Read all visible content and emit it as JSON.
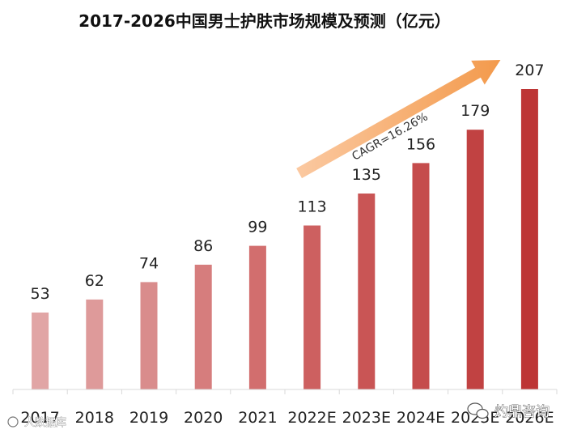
{
  "chart_data": {
    "type": "bar",
    "title": "2017-2026中国男士护肤市场规模及预测（亿元）",
    "categories": [
      "2017",
      "2018",
      "2019",
      "2020",
      "2021",
      "2022E",
      "2023E",
      "2024E",
      "2025E",
      "2026E"
    ],
    "values": [
      53,
      62,
      74,
      86,
      99,
      113,
      135,
      156,
      179,
      207
    ],
    "data_labels": [
      "53",
      "62",
      "74",
      "86",
      "99",
      "113",
      "135",
      "156",
      "179",
      "207"
    ],
    "xlabel": "",
    "ylabel": "",
    "ylim": [
      0,
      207
    ],
    "grid": false,
    "legend": "none",
    "annotation": {
      "text": "CAGR=16.26%",
      "arrow_from_category": "2022E",
      "arrow_to_category": "2026E"
    },
    "bar_colors": [
      "#e1a5a5",
      "#de9a9a",
      "#d98c8c",
      "#d67d7d",
      "#d26e6e",
      "#cd6060",
      "#c95555",
      "#c54c4c",
      "#c14242",
      "#bd3535"
    ],
    "arrow_colors": [
      "#fbc9a1",
      "#f39a4c"
    ]
  },
  "watermark_left": "人数据库",
  "watermark_right": "灼鼎咨询"
}
